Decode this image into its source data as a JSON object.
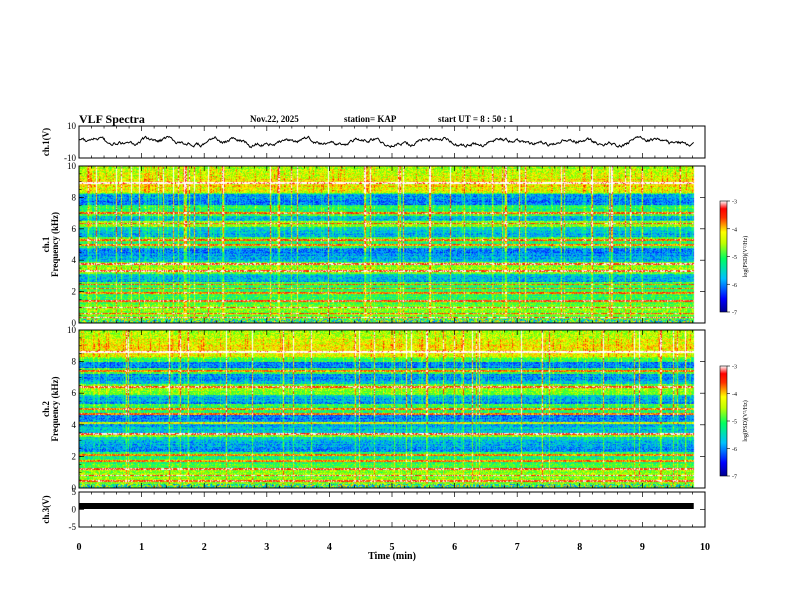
{
  "header": {
    "title": "VLF Spectra",
    "date": "Nov.22, 2025",
    "station": "station= KAP",
    "start": "start  UT =   8  : 50 : 1"
  },
  "chart_data": {
    "type": "heatmap",
    "title": "VLF Spectra",
    "x": {
      "label": "Time  (min)",
      "range": [
        0,
        10
      ],
      "ticks": [
        0,
        1,
        2,
        3,
        4,
        5,
        6,
        7,
        8,
        9,
        10
      ],
      "data_end": 9.82
    },
    "panels": [
      {
        "id": "ch1-waveform",
        "type": "line",
        "ylabel": "ch.1(V)",
        "yrange": [
          -10,
          10
        ],
        "yticks": [
          10,
          -10
        ],
        "note": "noisy waveform, amplitude roughly -3 to 3 V"
      },
      {
        "id": "ch1-spectrogram",
        "type": "heatmap",
        "ylabel": "ch.1\nFrequency  (kHz)",
        "yrange": [
          0,
          10
        ],
        "yticks": [
          0,
          2,
          4,
          6,
          8,
          10
        ],
        "zlabel": "log(PSD)(V²/Hz)",
        "zrange": [
          -7,
          -3
        ],
        "zticks": [
          -3,
          -4,
          -5,
          -6,
          -7
        ],
        "low_power_bands_khz": [
          [
            2.6,
            3.1
          ],
          [
            3.9,
            4.8
          ],
          [
            5.5,
            6.1
          ],
          [
            6.5,
            6.8
          ],
          [
            7.5,
            8.2
          ]
        ],
        "tone_lines_khz": [
          0.15,
          0.35,
          0.6,
          1.0,
          1.4,
          1.9,
          2.2,
          2.45,
          3.3,
          3.75,
          4.95,
          5.3,
          6.35,
          7.0,
          8.9
        ]
      },
      {
        "id": "ch2-spectrogram",
        "type": "heatmap",
        "ylabel": "ch.2\nFrequency  (kHz)",
        "yrange": [
          0,
          10
        ],
        "yticks": [
          0,
          2,
          4,
          6,
          8,
          10
        ],
        "zlabel": "log(PSD)(V²/Hz)",
        "zrange": [
          -7,
          -3
        ],
        "zticks": [
          -3,
          -4,
          -5,
          -6,
          -7
        ],
        "low_power_bands_khz": [
          [
            2.3,
            3.2
          ],
          [
            3.5,
            4.6
          ],
          [
            5.3,
            5.9
          ],
          [
            6.6,
            7.2
          ],
          [
            7.6,
            8.0
          ]
        ],
        "tone_lines_khz": [
          0.2,
          0.45,
          0.8,
          1.2,
          1.7,
          2.1,
          3.4,
          4.1,
          4.7,
          5.0,
          6.4,
          7.4,
          8.6
        ]
      },
      {
        "id": "ch3-waveform",
        "type": "line",
        "ylabel": "ch.3(V)",
        "yrange": [
          -5,
          5
        ],
        "yticks": [
          5,
          0,
          -5
        ],
        "note": "thick saturated trace near +1 V"
      }
    ],
    "colormap": [
      "#0000a0",
      "#0000ff",
      "#0080ff",
      "#00e0ff",
      "#00ff80",
      "#80ff00",
      "#ffff00",
      "#ff8000",
      "#ff0000",
      "#ffffff"
    ]
  },
  "icons": {}
}
